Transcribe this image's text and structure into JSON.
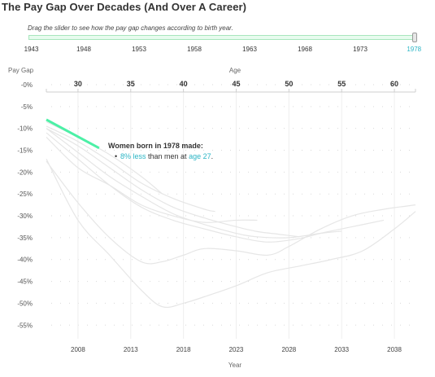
{
  "title": "The Pay Gap Over Decades (And Over A Career)",
  "slider": {
    "instruction": "Drag the slider to see how the pay gap changes according to birth year.",
    "ticks": [
      "1943",
      "1948",
      "1953",
      "1958",
      "1963",
      "1968",
      "1973",
      "1978"
    ],
    "selected": "1978",
    "value": 1978,
    "min": 1943,
    "max": 1978,
    "track_color": "#e7fbee",
    "active_color": "#2bb5c5"
  },
  "annotation": {
    "heading": "Women born in 1978 made:",
    "gap_text": "8% less",
    "middle_text": " than men at ",
    "age_text": "age 27",
    "end_text": "."
  },
  "chart_data": {
    "type": "line",
    "title": "",
    "ylabel": "Pay Gap",
    "xlabel": "Year",
    "top_axis_label": "Age",
    "ylim": [
      -57,
      0
    ],
    "xlim": [
      2005,
      2040
    ],
    "agelim": [
      27,
      62
    ],
    "yticks": [
      0,
      -5,
      -10,
      -15,
      -20,
      -25,
      -30,
      -35,
      -40,
      -45,
      -50,
      -55
    ],
    "ytick_labels": [
      "-0%",
      "-5%",
      "-10%",
      "-15%",
      "-20%",
      "-25%",
      "-30%",
      "-35%",
      "-40%",
      "-45%",
      "-50%",
      "-55%"
    ],
    "xticks": [
      2008,
      2013,
      2018,
      2023,
      2028,
      2033,
      2038
    ],
    "age_ticks": [
      30,
      35,
      40,
      45,
      50,
      55,
      60
    ],
    "grid": true,
    "highlight_color": "#4cf0a6",
    "background_color": "#e6e6e6",
    "highlight": {
      "birth_year": 1978,
      "x": [
        2005,
        2010
      ],
      "y": [
        -8,
        -14.5
      ]
    },
    "background_series": [
      {
        "x": [
          2005,
          2008,
          2011,
          2014,
          2016,
          2018,
          2020,
          2023,
          2026,
          2029,
          2032,
          2035,
          2038,
          2040
        ],
        "y": [
          -17,
          -31,
          -39,
          -47,
          -50.8,
          -50,
          -48.5,
          -46,
          -43,
          -41.5,
          -40,
          -38,
          -33,
          -29
        ]
      },
      {
        "x": [
          2005,
          2008,
          2011,
          2014,
          2016,
          2018,
          2020,
          2023,
          2026,
          2028,
          2031,
          2034,
          2037,
          2040
        ],
        "y": [
          -17.5,
          -27,
          -35,
          -40.5,
          -40.5,
          -39,
          -37.5,
          -38,
          -39,
          -37,
          -33,
          -30,
          -28.5,
          -27.5
        ]
      },
      {
        "x": [
          2005,
          2008,
          2011,
          2014,
          2017,
          2020,
          2023,
          2026,
          2029,
          2031,
          2034,
          2037
        ],
        "y": [
          -11,
          -17,
          -23,
          -28,
          -31,
          -33,
          -34.8,
          -36,
          -35.2,
          -34,
          -32.5,
          -31
        ]
      },
      {
        "x": [
          2005,
          2008,
          2011,
          2014,
          2017,
          2020,
          2023,
          2025,
          2028,
          2031,
          2033
        ],
        "y": [
          -10,
          -15.5,
          -21,
          -25.5,
          -29.5,
          -32,
          -34,
          -34.8,
          -35,
          -34,
          -33.5
        ]
      },
      {
        "x": [
          2005,
          2008,
          2011,
          2014,
          2017,
          2020,
          2023,
          2025,
          2027,
          2029
        ],
        "y": [
          -10,
          -14,
          -19,
          -24,
          -28,
          -30.5,
          -32.5,
          -33.6,
          -34.2,
          -34.8
        ]
      },
      {
        "x": [
          2005,
          2008,
          2011,
          2014,
          2017,
          2020,
          2023,
          2025
        ],
        "y": [
          -12,
          -19,
          -23,
          -27.5,
          -30,
          -31.5,
          -31,
          -31
        ]
      },
      {
        "x": [
          2005,
          2008,
          2011,
          2014,
          2017,
          2020,
          2021
        ],
        "y": [
          -9.5,
          -13,
          -17.5,
          -22.5,
          -26,
          -28.5,
          -29
        ]
      },
      {
        "x": [
          2005,
          2008,
          2011,
          2014,
          2016
        ],
        "y": [
          -8.5,
          -12,
          -16,
          -21,
          -25
        ]
      }
    ]
  }
}
